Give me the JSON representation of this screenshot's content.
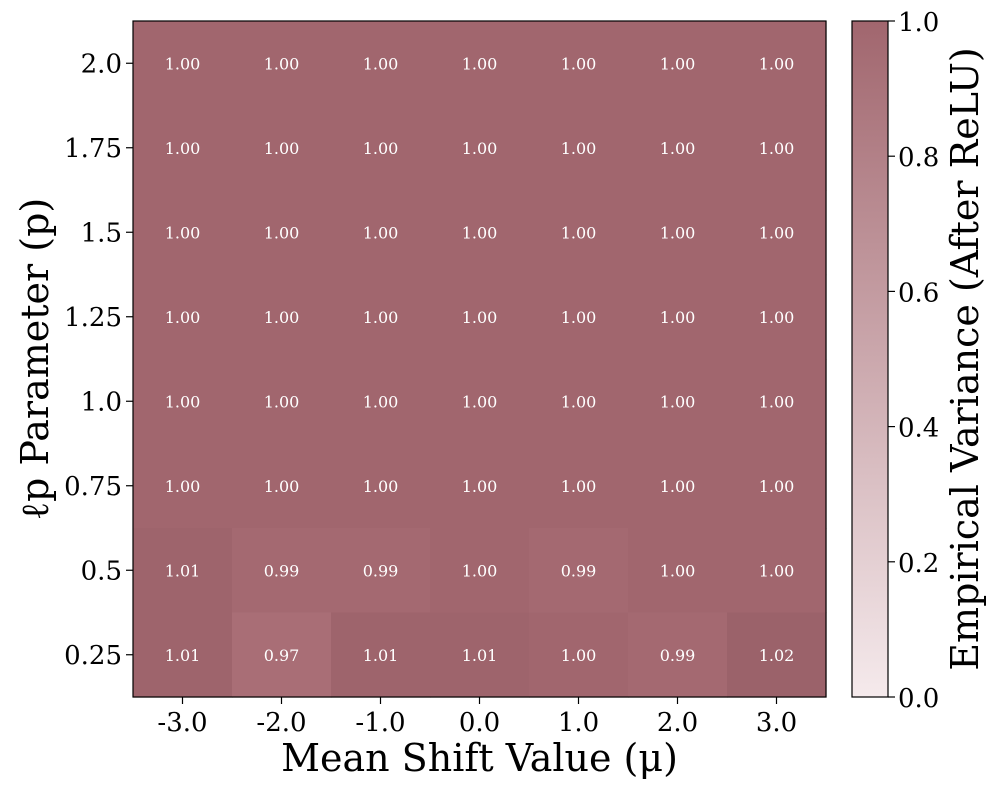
{
  "chart_data": {
    "type": "heatmap",
    "title": "",
    "xlabel": "Mean Shift Value (μ)",
    "ylabel": "ℓp Parameter (p)",
    "x_categories": [
      "-3.0",
      "-2.0",
      "-1.0",
      "0.0",
      "1.0",
      "2.0",
      "3.0"
    ],
    "y_categories": [
      "2.0",
      "1.75",
      "1.5",
      "1.25",
      "1.0",
      "0.75",
      "0.5",
      "0.25"
    ],
    "values": [
      [
        1.0,
        1.0,
        1.0,
        1.0,
        1.0,
        1.0,
        1.0
      ],
      [
        1.0,
        1.0,
        1.0,
        1.0,
        1.0,
        1.0,
        1.0
      ],
      [
        1.0,
        1.0,
        1.0,
        1.0,
        1.0,
        1.0,
        1.0
      ],
      [
        1.0,
        1.0,
        1.0,
        1.0,
        1.0,
        1.0,
        1.0
      ],
      [
        1.0,
        1.0,
        1.0,
        1.0,
        1.0,
        1.0,
        1.0
      ],
      [
        1.0,
        1.0,
        1.0,
        1.0,
        1.0,
        1.0,
        1.0
      ],
      [
        1.01,
        0.99,
        0.99,
        1.0,
        0.99,
        1.0,
        1.0
      ],
      [
        1.01,
        0.97,
        1.01,
        1.01,
        1.0,
        0.99,
        1.02
      ]
    ],
    "value_labels": [
      [
        "1.00",
        "1.00",
        "1.00",
        "1.00",
        "1.00",
        "1.00",
        "1.00"
      ],
      [
        "1.00",
        "1.00",
        "1.00",
        "1.00",
        "1.00",
        "1.00",
        "1.00"
      ],
      [
        "1.00",
        "1.00",
        "1.00",
        "1.00",
        "1.00",
        "1.00",
        "1.00"
      ],
      [
        "1.00",
        "1.00",
        "1.00",
        "1.00",
        "1.00",
        "1.00",
        "1.00"
      ],
      [
        "1.00",
        "1.00",
        "1.00",
        "1.00",
        "1.00",
        "1.00",
        "1.00"
      ],
      [
        "1.00",
        "1.00",
        "1.00",
        "1.00",
        "1.00",
        "1.00",
        "1.00"
      ],
      [
        "1.01",
        "0.99",
        "0.99",
        "1.00",
        "0.99",
        "1.00",
        "1.00"
      ],
      [
        "1.01",
        "0.97",
        "1.01",
        "1.01",
        "1.00",
        "0.99",
        "1.02"
      ]
    ],
    "colorbar": {
      "label": "Empirical Variance (After ReLU)",
      "range": [
        0.0,
        1.0
      ],
      "ticks": [
        0.0,
        0.2,
        0.4,
        0.6,
        0.8,
        1.0
      ],
      "tick_labels": [
        "0.0",
        "0.2",
        "0.4",
        "0.6",
        "0.8",
        "1.0"
      ],
      "color_low": "#f5eaec",
      "color_high": "#a1666e"
    },
    "grid": false,
    "legend": "none"
  }
}
